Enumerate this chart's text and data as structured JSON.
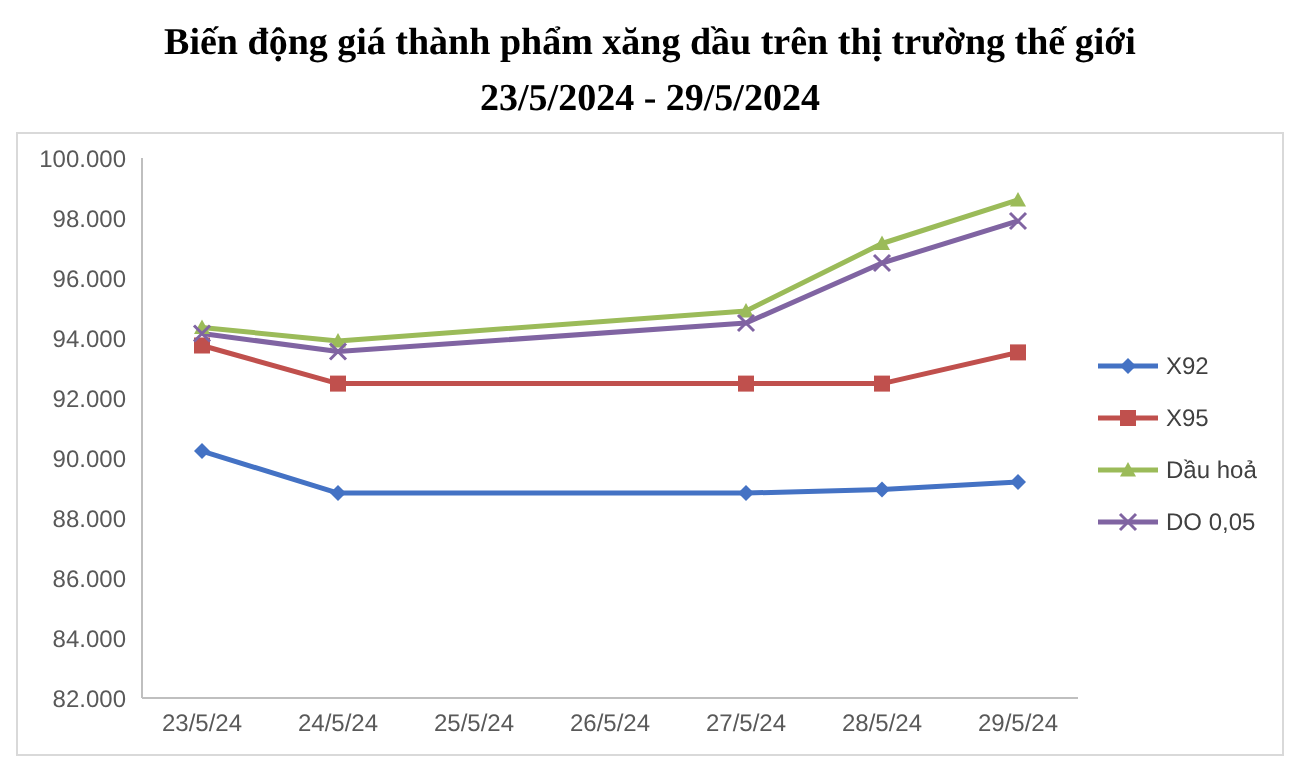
{
  "chart_data": {
    "type": "line",
    "title": "Biến động giá thành phẩm xăng dầu trên thị trường thế giới",
    "subtitle": "23/5/2024 - 29/5/2024",
    "categories": [
      "23/5/24",
      "24/5/24",
      "25/5/24",
      "26/5/24",
      "27/5/24",
      "28/5/24",
      "29/5/24"
    ],
    "series": [
      {
        "name": "X92",
        "color": "#4472c4",
        "marker": "diamond",
        "values": [
          90230,
          88830,
          null,
          null,
          88830,
          88950,
          89200
        ]
      },
      {
        "name": "X95",
        "color": "#c0504d",
        "marker": "square",
        "values": [
          93750,
          92480,
          null,
          null,
          92480,
          92480,
          93520
        ]
      },
      {
        "name": "Dầu hoả",
        "color": "#9bbb59",
        "marker": "triangle",
        "values": [
          94350,
          93900,
          null,
          null,
          94900,
          97150,
          98600
        ]
      },
      {
        "name": "DO 0,05",
        "color": "#8064a2",
        "marker": "cross",
        "values": [
          94150,
          93550,
          null,
          null,
          94500,
          96500,
          97900
        ]
      }
    ],
    "ylim": [
      82000,
      100000
    ],
    "yticks": [
      {
        "value": 82000,
        "label": "82.000"
      },
      {
        "value": 84000,
        "label": "84.000"
      },
      {
        "value": 86000,
        "label": "86.000"
      },
      {
        "value": 88000,
        "label": "88.000"
      },
      {
        "value": 90000,
        "label": "90.000"
      },
      {
        "value": 92000,
        "label": "92.000"
      },
      {
        "value": 94000,
        "label": "94.000"
      },
      {
        "value": 96000,
        "label": "96.000"
      },
      {
        "value": 98000,
        "label": "98.000"
      },
      {
        "value": 100000,
        "label": "100.000"
      }
    ],
    "grid": false,
    "legend": "right"
  }
}
